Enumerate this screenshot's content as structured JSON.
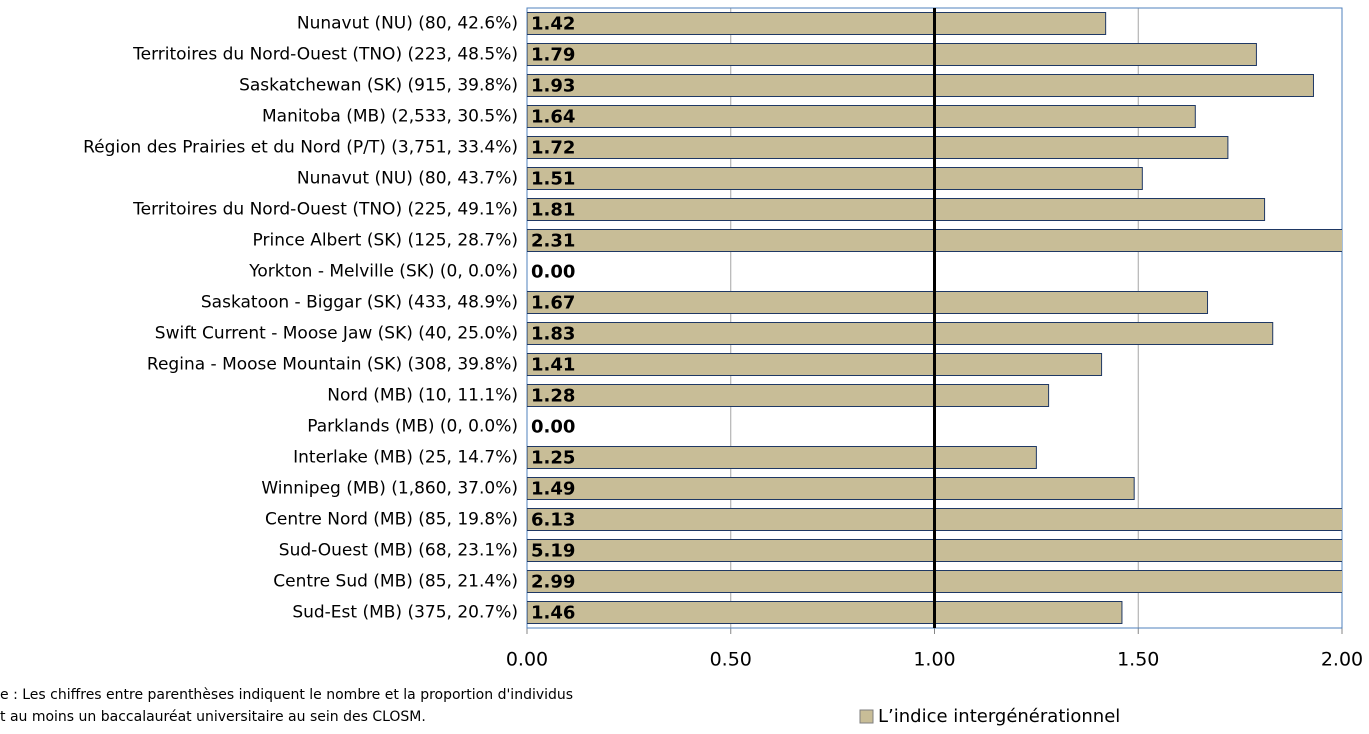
{
  "chart_data": {
    "type": "bar",
    "orientation": "horizontal",
    "categories": [
      "Nunavut (NU) (80, 42.6%)",
      "Territoires du Nord-Ouest (TNO) (223, 48.5%)",
      "Saskatchewan (SK) (915, 39.8%)",
      "Manitoba (MB) (2,533, 30.5%)",
      "Région des Prairies et du Nord (P/T) (3,751, 33.4%)",
      "Nunavut (NU) (80, 43.7%)",
      "Territoires du Nord-Ouest (TNO) (225, 49.1%)",
      "Prince Albert (SK) (125, 28.7%)",
      "Yorkton - Melville (SK) (0, 0.0%)",
      "Saskatoon - Biggar (SK) (433, 48.9%)",
      "Swift Current - Moose Jaw (SK) (40, 25.0%)",
      "Regina - Moose Mountain (SK) (308, 39.8%)",
      "Nord (MB) (10, 11.1%)",
      "Parklands (MB) (0, 0.0%)",
      "Interlake (MB) (25, 14.7%)",
      "Winnipeg (MB) (1,860, 37.0%)",
      "Centre Nord (MB) (85, 19.8%)",
      "Sud-Ouest (MB) (68, 23.1%)",
      "Centre Sud (MB) (85, 21.4%)",
      "Sud-Est (MB) (375, 20.7%)"
    ],
    "series": [
      {
        "name": "L’indice intergénérationnel",
        "color": "#c8bd97",
        "values": [
          1.42,
          1.79,
          1.93,
          1.64,
          1.72,
          1.51,
          1.81,
          2.31,
          0,
          1.67,
          1.83,
          1.41,
          1.28,
          0,
          1.25,
          1.49,
          6.13,
          5.19,
          2.99,
          1.46
        ],
        "value_labels": [
          "1.42",
          "1.79",
          "1.93",
          "1.64",
          "1.72",
          "1.51",
          "1.81",
          "2.31",
          "0.00",
          "1.67",
          "1.83",
          "1.41",
          "1.28",
          "0.00",
          "1.25",
          "1.49",
          "6.13",
          "5.19",
          "2.99",
          "1.46"
        ]
      }
    ],
    "xlim": [
      0,
      2
    ],
    "xticks": [
      {
        "value": 0,
        "label": "0.00"
      },
      {
        "value": 0.5,
        "label": "0.50"
      },
      {
        "value": 1,
        "label": "1.00"
      },
      {
        "value": 1.5,
        "label": "1.50"
      },
      {
        "value": 2,
        "label": "2.00"
      }
    ],
    "reference_line": 1,
    "grid": true,
    "legend": "bottom-right",
    "note": [
      "e : Les chiffres entre parenthèses indiquent le nombre et la proportion d'individus",
      "t au moins un baccalauréat universitaire au sein des CLOSM."
    ]
  }
}
